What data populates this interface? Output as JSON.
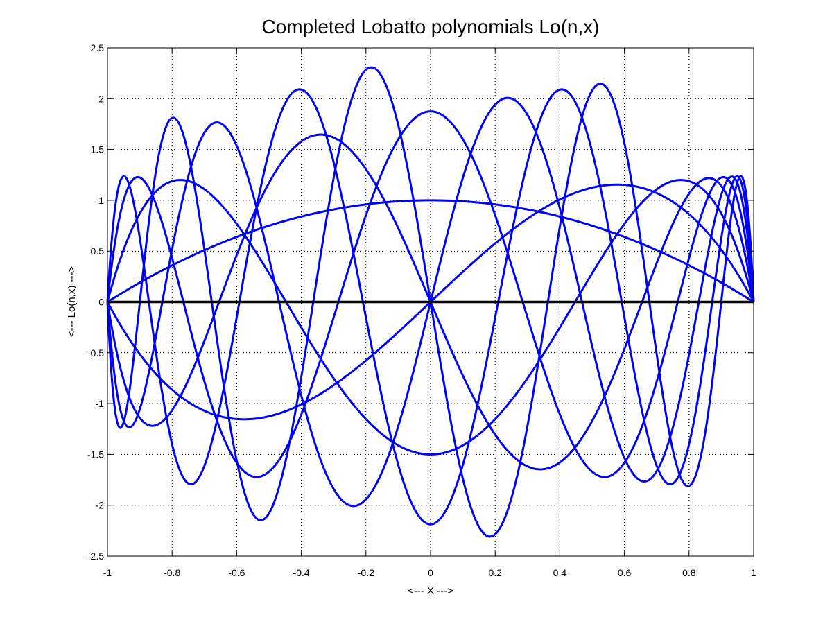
{
  "chart_data": {
    "type": "line",
    "title": "Completed Lobatto polynomials Lo(n,x)",
    "xlabel": "<--- X --->",
    "ylabel": "<--- Lo(n,x) --->",
    "xlim": [
      -1,
      1
    ],
    "ylim": [
      -2.5,
      2.5
    ],
    "xticks": [
      -1,
      -0.8,
      -0.6,
      -0.4,
      -0.2,
      0,
      0.2,
      0.4,
      0.6,
      0.8,
      1
    ],
    "yticks": [
      -2.5,
      -2,
      -1.5,
      -1,
      -0.5,
      0,
      0.5,
      1,
      1.5,
      2,
      2.5
    ],
    "xtick_labels": [
      "-1",
      "-0.8",
      "-0.6",
      "-0.4",
      "-0.2",
      "0",
      "0.2",
      "0.4",
      "0.6",
      "0.8",
      "1"
    ],
    "ytick_labels": [
      "-2.5",
      "-2",
      "-1.5",
      "-1",
      "-0.5",
      "0",
      "0.5",
      "1",
      "1.5",
      "2",
      "2.5"
    ],
    "grid": true,
    "grid_style": "dotted",
    "series_color": "#0000ff",
    "zero_line_color": "#000000",
    "n_values": [
      1,
      2,
      3,
      4,
      5,
      6,
      7,
      8
    ],
    "x_start": -1,
    "x_end": 1,
    "samples": 401
  }
}
